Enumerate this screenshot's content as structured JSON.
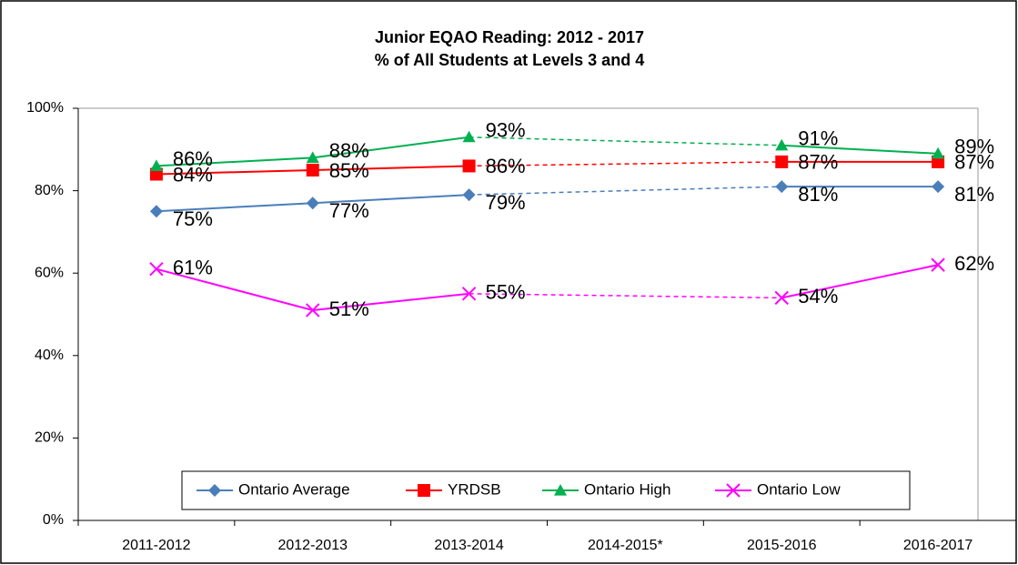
{
  "chart_data": {
    "type": "line",
    "title": "Junior EQAO Reading: 2012 - 2017",
    "subtitle": "% of All Students at Levels 3 and 4",
    "categories": [
      "2011-2012",
      "2012-2013",
      "2013-2014",
      "2014-2015*",
      "2015-2016",
      "2016-2017"
    ],
    "series": [
      {
        "name": "Ontario Average",
        "color": "#4a7ebb",
        "marker": "diamond",
        "values": [
          75,
          77,
          79,
          null,
          81,
          81
        ],
        "value_labels": [
          "75%",
          "77%",
          "79%",
          null,
          "81%",
          "81%"
        ]
      },
      {
        "name": "YRDSB",
        "color": "#ff0000",
        "marker": "square",
        "values": [
          84,
          85,
          86,
          null,
          87,
          87
        ],
        "value_labels": [
          "84%",
          "85%",
          "86%",
          null,
          "87%",
          "87%"
        ]
      },
      {
        "name": "Ontario High",
        "color": "#00b050",
        "marker": "triangle",
        "values": [
          86,
          88,
          93,
          null,
          91,
          89
        ],
        "value_labels": [
          "86%",
          "88%",
          "93%",
          null,
          "91%",
          "89%"
        ]
      },
      {
        "name": "Ontario Low",
        "color": "#ff00ff",
        "marker": "x",
        "values": [
          61,
          51,
          55,
          null,
          54,
          62
        ],
        "value_labels": [
          "61%",
          "51%",
          "55%",
          null,
          "54%",
          "62%"
        ]
      }
    ],
    "ylim": [
      0,
      100
    ],
    "yticks": [
      {
        "value": 0,
        "label": "0%"
      },
      {
        "value": 20,
        "label": "20%"
      },
      {
        "value": 40,
        "label": "40%"
      },
      {
        "value": 60,
        "label": "60%"
      },
      {
        "value": 80,
        "label": "80%"
      },
      {
        "value": 100,
        "label": "100%"
      }
    ],
    "grid": false,
    "legend": "bottom"
  }
}
